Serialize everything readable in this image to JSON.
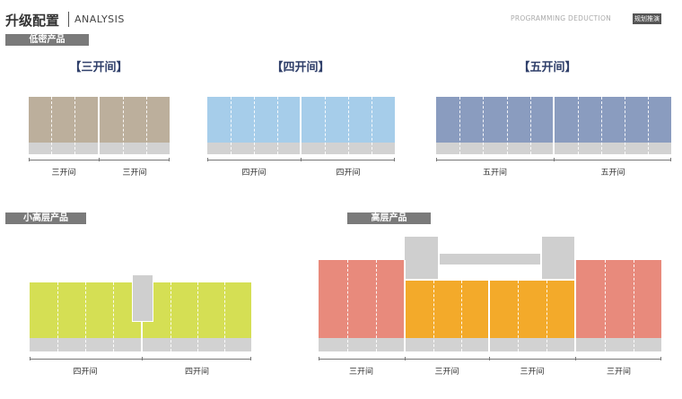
{
  "header": {
    "title": "升级配置",
    "subtitle": "ANALYSIS",
    "right_text": "PROGRAMMING DEDUCTION",
    "right_tag": "规划推演"
  },
  "sections": {
    "low_density": "低密产品",
    "small_high_rise": "小高层产品",
    "high_rise": "高层产品"
  },
  "groups": {
    "three": {
      "title": "【三开间】",
      "units": [
        "三开间",
        "三开间"
      ]
    },
    "four": {
      "title": "【四开间】",
      "units": [
        "四开间",
        "四开间"
      ]
    },
    "five": {
      "title": "【五开间】",
      "units": [
        "五开间",
        "五开间"
      ]
    },
    "small_high": {
      "units": [
        "四开间",
        "四开间"
      ]
    },
    "high": {
      "units": [
        "三开间",
        "三开间",
        "三开间",
        "三开间"
      ]
    }
  },
  "colors": {
    "three": "#bcaf9c",
    "four": "#a6cdea",
    "five": "#8a9cbf",
    "small_high": "#d5df54",
    "high_outer": "#e88a7c",
    "high_inner": "#f3aa2a",
    "base": "#d2d2d2",
    "section_bar": "#7a7a7a",
    "group_title": "#2f3f6a"
  }
}
